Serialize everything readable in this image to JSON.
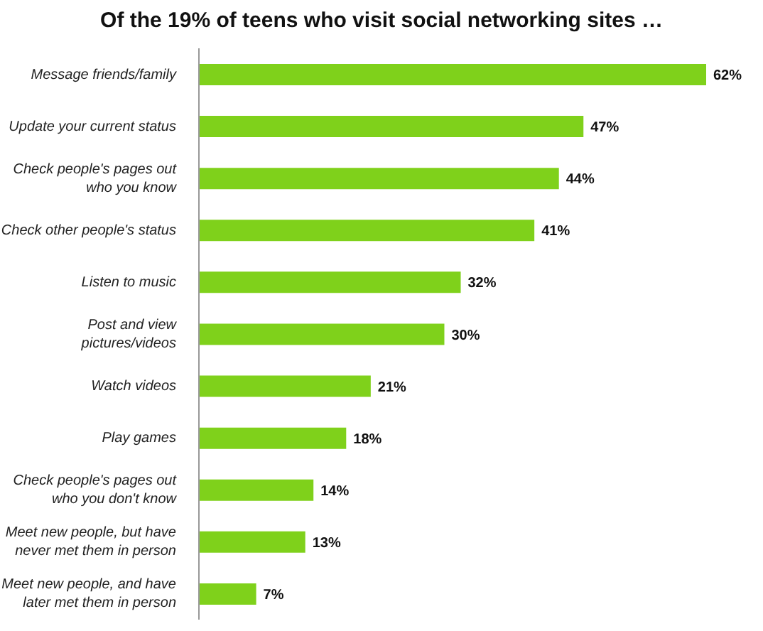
{
  "chart_data": {
    "type": "bar",
    "orientation": "horizontal",
    "title": "Of the 19% of teens who visit social networking sites …",
    "categories": [
      "Message friends/family",
      "Update your current status",
      "Check people's pages out who you know",
      "Check other people's status",
      "Listen to music",
      "Post and view pictures/videos",
      "Watch videos",
      "Play games",
      "Check people's pages out who you don't know",
      "Meet new people, but have never met them in person",
      "Meet new people, and have later met them in person"
    ],
    "values": [
      62,
      47,
      44,
      41,
      32,
      30,
      21,
      18,
      14,
      13,
      7
    ],
    "value_labels": [
      "62%",
      "47%",
      "44%",
      "41%",
      "32%",
      "30%",
      "21%",
      "18%",
      "14%",
      "13%",
      "7%"
    ],
    "color": "#7fd11b",
    "tick_labels": "y"
  }
}
